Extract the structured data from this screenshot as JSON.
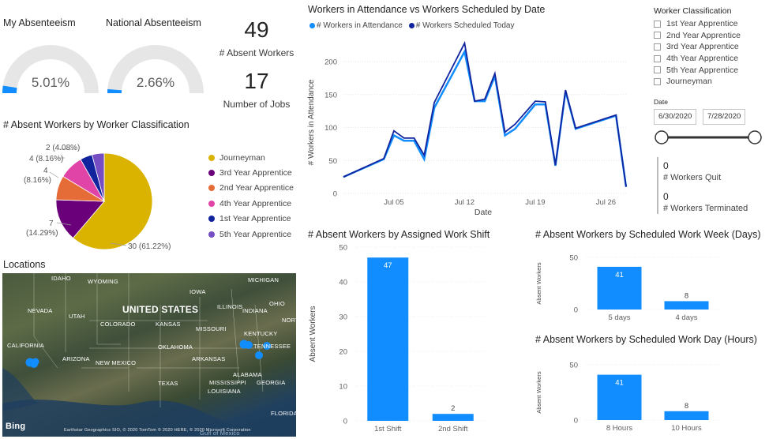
{
  "gauges": [
    {
      "title": "My Absenteeism",
      "value_text": "5.01%",
      "fraction": 0.0501
    },
    {
      "title": "National Absenteeism",
      "value_text": "2.66%",
      "fraction": 0.0266
    }
  ],
  "kpis": {
    "absent_workers": {
      "value": "49",
      "label": "# Absent Workers"
    },
    "number_of_jobs": {
      "value": "17",
      "label": "Number of Jobs"
    }
  },
  "pie": {
    "title": "# Absent Workers by Worker Classification",
    "slices": [
      {
        "name": "Journeyman",
        "value": 30,
        "label": "30 (61.22%)",
        "color": "#D9B300"
      },
      {
        "name": "3rd Year Apprentice",
        "value": 7,
        "label": "7 (14.29%)",
        "color": "#6B007B"
      },
      {
        "name": "2nd Year Apprentice",
        "value": 4,
        "label": "4 (8.16%)",
        "color": "#E66C37"
      },
      {
        "name": "4th Year Apprentice",
        "value": 4,
        "label": "4 (8.16%)",
        "color": "#E044A7"
      },
      {
        "name": "1st Year Apprentice",
        "value": 2,
        "label": "2 (4.08%)",
        "color": "#12239E"
      },
      {
        "name": "5th Year Apprentice",
        "value": 2,
        "label": "",
        "color": "#744EC2"
      }
    ],
    "label_4_a": "4",
    "label_4_b": "(8.16%)",
    "label_4_c": "4 (8.16%)",
    "label_2": "2 (4.08%)",
    "label_7_a": "7",
    "label_7_b": "(14.29%)",
    "label_30": "30 (61.22%)"
  },
  "map": {
    "title": "Locations",
    "labels": [
      "IDAHO",
      "WYOMING",
      "MICHIGAN",
      "NEVADA",
      "UNITED STATES",
      "UTAH",
      "IOWA",
      "ILLINOIS",
      "INDIANA",
      "OHIO",
      "COLORADO",
      "KANSAS",
      "MISSOURI",
      "KENTUCKY",
      "CALIFORNIA",
      "OKLAHOMA",
      "TENNESSEE",
      "ARIZONA",
      "NEW MEXICO",
      "ARKANSAS",
      "ALABAMA",
      "GEORGIA",
      "TEXAS",
      "MISSISSIPPI",
      "LOUISIANA",
      "FLORIDA",
      "Gulf of Mexico",
      "NORTH CA"
    ],
    "credit": "Earthstar Geographics SIO, © 2020 TomTom © 2020 HERE, © 2020 Microsoft Corporation",
    "brand": "Bing"
  },
  "line_chart": {
    "title": "Workers in Attendance vs Workers Scheduled by Date",
    "legend": [
      "# Workers in Attendance",
      "# Workers Scheduled Today"
    ],
    "xlabel": "Date",
    "ylabel": "# Workers in Attendance"
  },
  "chart_data": [
    {
      "type": "line",
      "title": "Workers in Attendance vs Workers Scheduled by Date",
      "xlabel": "Date",
      "ylabel": "# Workers in Attendance",
      "x": [
        "2020-06-30",
        "2020-07-04",
        "2020-07-05",
        "2020-07-06",
        "2020-07-07",
        "2020-07-08",
        "2020-07-09",
        "2020-07-12",
        "2020-07-13",
        "2020-07-14",
        "2020-07-15",
        "2020-07-16",
        "2020-07-17",
        "2020-07-19",
        "2020-07-20",
        "2020-07-21",
        "2020-07-22",
        "2020-07-23",
        "2020-07-27",
        "2020-07-28"
      ],
      "x_ticks": [
        "Jul 05",
        "Jul 12",
        "Jul 19",
        "Jul 26"
      ],
      "ylim": [
        0,
        230
      ],
      "y_ticks": [
        0,
        50,
        100,
        150,
        200
      ],
      "series": [
        {
          "name": "# Workers in Attendance",
          "color": "#118DFF",
          "values": [
            25,
            52,
            88,
            80,
            80,
            52,
            130,
            215,
            140,
            140,
            178,
            88,
            98,
            135,
            135,
            42,
            155,
            98,
            118,
            10
          ]
        },
        {
          "name": "# Workers Scheduled Today",
          "color": "#12239E",
          "values": [
            25,
            53,
            95,
            84,
            84,
            58,
            138,
            228,
            140,
            143,
            182,
            93,
            105,
            140,
            139,
            43,
            157,
            99,
            119,
            10
          ]
        }
      ]
    },
    {
      "type": "bar",
      "title": "# Absent Workers by Assigned Work Shift",
      "ylabel": "Absent Workers",
      "categories": [
        "1st Shift",
        "2nd Shift"
      ],
      "values": [
        47,
        2
      ],
      "ylim": [
        0,
        50
      ],
      "y_ticks": [
        0,
        10,
        20,
        30,
        40,
        50
      ]
    },
    {
      "type": "bar",
      "title": "# Absent Workers by Scheduled Work Week (Days)",
      "ylabel": "Absent Workers",
      "categories": [
        "5 days",
        "4 days"
      ],
      "values": [
        41,
        8
      ],
      "ylim": [
        0,
        50
      ],
      "y_ticks": [
        0,
        50
      ]
    },
    {
      "type": "bar",
      "title": "# Absent Workers by Scheduled Work Day (Hours)",
      "ylabel": "Absent Workers",
      "categories": [
        "8 Hours",
        "10 Hours"
      ],
      "values": [
        41,
        8
      ],
      "ylim": [
        0,
        50
      ],
      "y_ticks": [
        0,
        50
      ]
    },
    {
      "type": "pie",
      "title": "# Absent Workers by Worker Classification",
      "categories": [
        "Journeyman",
        "3rd Year Apprentice",
        "2nd Year Apprentice",
        "4th Year Apprentice",
        "1st Year Apprentice",
        "5th Year Apprentice"
      ],
      "values": [
        30,
        7,
        4,
        4,
        2,
        2
      ]
    }
  ],
  "slicer": {
    "title": "Worker Classification",
    "items": [
      "1st Year Apprentice",
      "2nd Year Apprentice",
      "3rd Year Apprentice",
      "4th Year Apprentice",
      "5th Year Apprentice",
      "Journeyman"
    ]
  },
  "date_filter": {
    "title": "Date",
    "start": "6/30/2020",
    "end": "7/28/2020"
  },
  "quit_card": {
    "value": "0",
    "label": "# Workers Quit"
  },
  "terminated_card": {
    "value": "0",
    "label": "# Workers Terminated"
  },
  "colors": {
    "bar": "#118DFF",
    "line_attendance": "#118DFF",
    "line_scheduled": "#12239E",
    "gauge_fill": "#118DFF",
    "gauge_track": "#E6E6E6"
  }
}
